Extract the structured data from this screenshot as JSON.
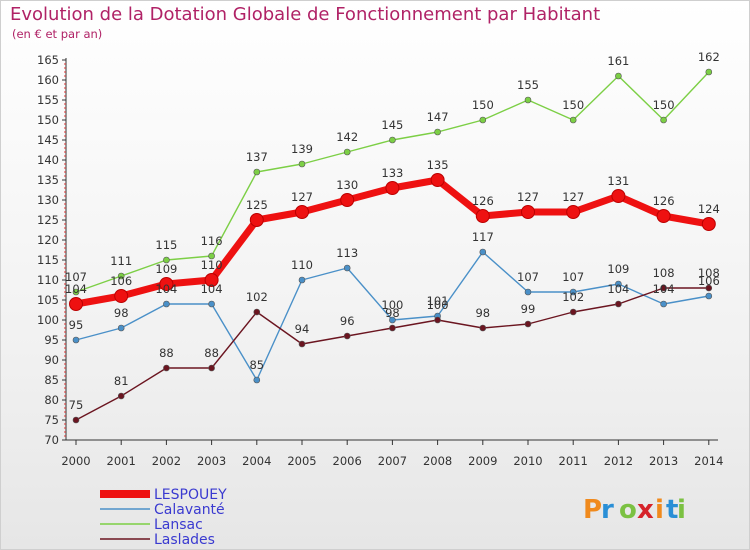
{
  "title": "Evolution de la Dotation Globale de Fonctionnement par Habitant",
  "subtitle": "(en € et par an)",
  "logo_text": "Proxiti",
  "chart_data": {
    "type": "line",
    "title": "Evolution de la Dotation Globale de Fonctionnement par Habitant",
    "subtitle": "(en € et par an)",
    "xlabel": "",
    "ylabel": "",
    "ylim": [
      70,
      165
    ],
    "ytick_step": 5,
    "grid": false,
    "legend_position": "bottom-left",
    "categories": [
      "2000",
      "2001",
      "2002",
      "2003",
      "2004",
      "2005",
      "2006",
      "2007",
      "2008",
      "2009",
      "2010",
      "2011",
      "2012",
      "2013",
      "2014"
    ],
    "series": [
      {
        "name": "LESPOUEY",
        "color": "#ee1111",
        "values": [
          104,
          106,
          109,
          110,
          125,
          127,
          130,
          133,
          135,
          126,
          127,
          127,
          131,
          126,
          124
        ]
      },
      {
        "name": "Calavanté",
        "color": "#4a90c8",
        "values": [
          95,
          98,
          104,
          104,
          85,
          110,
          113,
          100,
          101,
          117,
          107,
          107,
          109,
          104,
          106
        ]
      },
      {
        "name": "Lansac",
        "color": "#7ccf45",
        "values": [
          107,
          111,
          115,
          116,
          137,
          139,
          142,
          145,
          147,
          150,
          155,
          150,
          161,
          150,
          162
        ]
      },
      {
        "name": "Laslades",
        "color": "#6b1520",
        "values": [
          75,
          81,
          88,
          88,
          102,
          94,
          96,
          98,
          100,
          98,
          99,
          102,
          104,
          108,
          108
        ]
      }
    ]
  }
}
